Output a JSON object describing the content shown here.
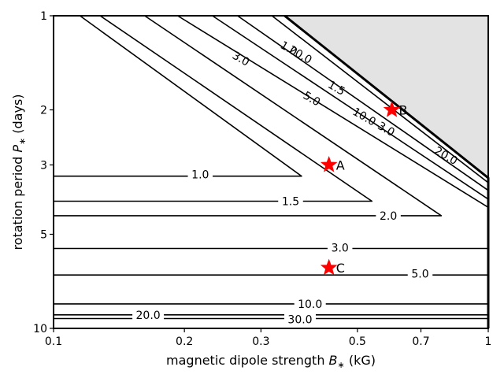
{
  "chart_data": {
    "type": "line",
    "title": "",
    "xlabel": "magnetic dipole strength B_* (kG)",
    "ylabel": "rotation period P_* (days)",
    "xscale": "log",
    "yscale": "log",
    "xlim": [
      0.1,
      1
    ],
    "ylim": [
      1,
      10
    ],
    "y_inverted": true,
    "xticks": [
      {
        "value": 0.1,
        "label": "0.1"
      },
      {
        "value": 0.2,
        "label": "0.2"
      },
      {
        "value": 0.3,
        "label": "0.3"
      },
      {
        "value": 0.5,
        "label": "0.5"
      },
      {
        "value": 0.7,
        "label": "0.7"
      },
      {
        "value": 1,
        "label": "1"
      }
    ],
    "yticks": [
      {
        "value": 1,
        "label": "1"
      },
      {
        "value": 2,
        "label": "2"
      },
      {
        "value": 3,
        "label": "3"
      },
      {
        "value": 5,
        "label": "5"
      },
      {
        "value": 10,
        "label": "10"
      }
    ],
    "shaded_region": {
      "color": "#e3e3e3",
      "boundary": [
        [
          0.34,
          1.0
        ],
        [
          1.0,
          3.3
        ]
      ]
    },
    "contours": [
      {
        "level": "1.0",
        "bold": false,
        "points": [
          [
            0.1,
            3.26
          ],
          [
            0.372,
            3.26
          ],
          [
            0.115,
            1.0
          ]
        ]
      },
      {
        "level": "1.5",
        "bold": false,
        "points": [
          [
            0.1,
            3.92
          ],
          [
            0.54,
            3.92
          ],
          [
            0.128,
            1.0
          ]
        ]
      },
      {
        "level": "2.0",
        "bold": false,
        "points": [
          [
            0.1,
            4.36
          ],
          [
            0.78,
            4.36
          ],
          [
            0.162,
            1.0
          ]
        ]
      },
      {
        "level": "3.0",
        "bold": false,
        "points": [
          [
            0.1,
            5.55
          ],
          [
            1.0,
            5.55
          ],
          [
            1.0,
            4.1
          ],
          [
            0.193,
            1.0
          ]
        ]
      },
      {
        "level": "5.0",
        "bold": false,
        "points": [
          [
            0.1,
            6.75
          ],
          [
            1.0,
            6.75
          ],
          [
            1.0,
            3.86
          ],
          [
            0.232,
            1.0
          ]
        ]
      },
      {
        "level": "10.0",
        "bold": false,
        "points": [
          [
            0.1,
            8.35
          ],
          [
            1.0,
            8.35
          ],
          [
            1.0,
            3.62
          ],
          [
            0.265,
            1.0
          ]
        ]
      },
      {
        "level": "20.0",
        "bold": false,
        "points": [
          [
            0.1,
            9.05
          ],
          [
            1.0,
            9.05
          ],
          [
            1.0,
            3.42
          ],
          [
            0.318,
            1.0
          ]
        ]
      },
      {
        "level": "30.0",
        "bold": false,
        "points": [
          [
            0.1,
            9.3
          ],
          [
            1.0,
            9.3
          ]
        ]
      },
      {
        "level": "",
        "bold": true,
        "points": [
          [
            0.34,
            1.0
          ],
          [
            1.0,
            3.3
          ],
          [
            1.0,
            10.0
          ]
        ]
      }
    ],
    "contour_labels": [
      {
        "text": "1.0",
        "x": 0.2175,
        "y": 3.22,
        "angle": 0
      },
      {
        "text": "1.5",
        "x": 0.351,
        "y": 3.92,
        "angle": 0
      },
      {
        "text": "2.0",
        "x": 0.589,
        "y": 4.36,
        "angle": 0
      },
      {
        "text": "3.0",
        "x": 0.456,
        "y": 5.52,
        "angle": 0
      },
      {
        "text": "5.0",
        "x": 0.697,
        "y": 6.68,
        "angle": 0
      },
      {
        "text": "10.0",
        "x": 0.389,
        "y": 8.35,
        "angle": 0
      },
      {
        "text": "20.0",
        "x": 0.165,
        "y": 9.05,
        "angle": 0
      },
      {
        "text": "30.0",
        "x": 0.369,
        "y": 9.35,
        "angle": 0
      },
      {
        "text": "3.0",
        "x": 0.27,
        "y": 1.37,
        "angle": 30
      },
      {
        "text": "5.0",
        "x": 0.393,
        "y": 1.84,
        "angle": 30
      },
      {
        "text": "1.5",
        "x": 0.448,
        "y": 1.7,
        "angle": 30
      },
      {
        "text": "10.0",
        "x": 0.519,
        "y": 2.1,
        "angle": 30
      },
      {
        "text": "3.0",
        "x": 0.583,
        "y": 2.3,
        "angle": 30
      },
      {
        "text": "20.0",
        "x": 0.8,
        "y": 2.8,
        "angle": 30
      },
      {
        "text": "1.0",
        "x": 0.348,
        "y": 1.27,
        "angle": 30
      },
      {
        "text": "20.0",
        "x": 0.37,
        "y": 1.33,
        "angle": 30
      }
    ],
    "points": [
      {
        "name": "A",
        "x": 0.43,
        "y": 3.0,
        "color": "#ff0000"
      },
      {
        "name": "B",
        "x": 0.6,
        "y": 2.0,
        "color": "#ff0000"
      },
      {
        "name": "C",
        "x": 0.43,
        "y": 6.4,
        "color": "#ff0000"
      }
    ]
  }
}
